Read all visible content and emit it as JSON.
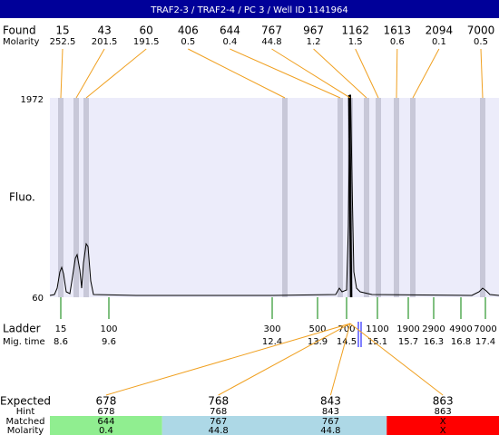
{
  "header": {
    "title": "TRAF2-3 / TRAF2-4 / PC 3 / Well ID 1141964"
  },
  "found": {
    "label": "Found",
    "molarity_label": "Molarity",
    "sizes": [
      15,
      43,
      60,
      406,
      644,
      767,
      967,
      1162,
      1613,
      2094,
      7000
    ],
    "molarity": [
      252.5,
      201.5,
      191.5,
      0.5,
      0.4,
      44.8,
      1.2,
      1.5,
      0.6,
      0.1,
      0.5
    ]
  },
  "y_axis": {
    "label": "Fluo.",
    "max": 1972,
    "min": 60
  },
  "ladder": {
    "label": "Ladder",
    "time_label": "Mig. time",
    "sizes": [
      15,
      100,
      300,
      500,
      700,
      1100,
      1900,
      2900,
      4900,
      7000
    ],
    "times": [
      8.6,
      9.6,
      12.4,
      13.9,
      14.5,
      15.1,
      15.7,
      16.3,
      16.8,
      17.4
    ]
  },
  "expected": {
    "row_labels": [
      "Expected",
      "Hint",
      "Matched",
      "Molarity"
    ],
    "expected": [
      678,
      768,
      843,
      863
    ],
    "hint": [
      678,
      768,
      843,
      863
    ],
    "matched": [
      644,
      767,
      767,
      "X"
    ],
    "molarity": [
      0.4,
      44.8,
      44.8,
      "X"
    ]
  }
}
